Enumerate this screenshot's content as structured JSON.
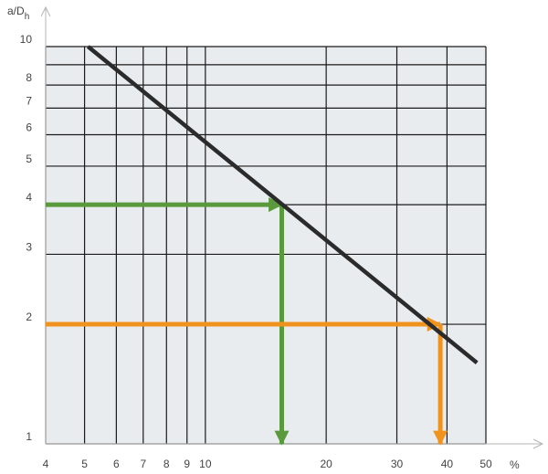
{
  "chart_data": {
    "type": "line",
    "y_axis_label": {
      "main": "a/D",
      "sub": "h"
    },
    "x_unit": "%",
    "x_scale": "log",
    "y_scale": "log",
    "xlim": [
      4,
      50
    ],
    "ylim": [
      1,
      10
    ],
    "x_ticks": [
      4,
      5,
      6,
      7,
      8,
      9,
      10,
      20,
      30,
      40,
      50
    ],
    "y_ticks": [
      1,
      2,
      3,
      4,
      5,
      6,
      7,
      8,
      10
    ],
    "y_tick_labels": [
      "1",
      "2",
      "3",
      "4",
      "5",
      "6",
      "7",
      "8",
      "10"
    ],
    "grid": true,
    "grid_color": "#1a1a1a",
    "plot_background": "#e8ecef",
    "curve": {
      "color": "#2b2b2b",
      "points": [
        [
          5.1,
          10
        ],
        [
          47.5,
          1.6
        ]
      ]
    },
    "arrows": [
      {
        "color": "#5a9a3c",
        "y": 4,
        "x": 15.5
      },
      {
        "color": "#f0931e",
        "y": 2,
        "x": 38.5
      }
    ]
  }
}
